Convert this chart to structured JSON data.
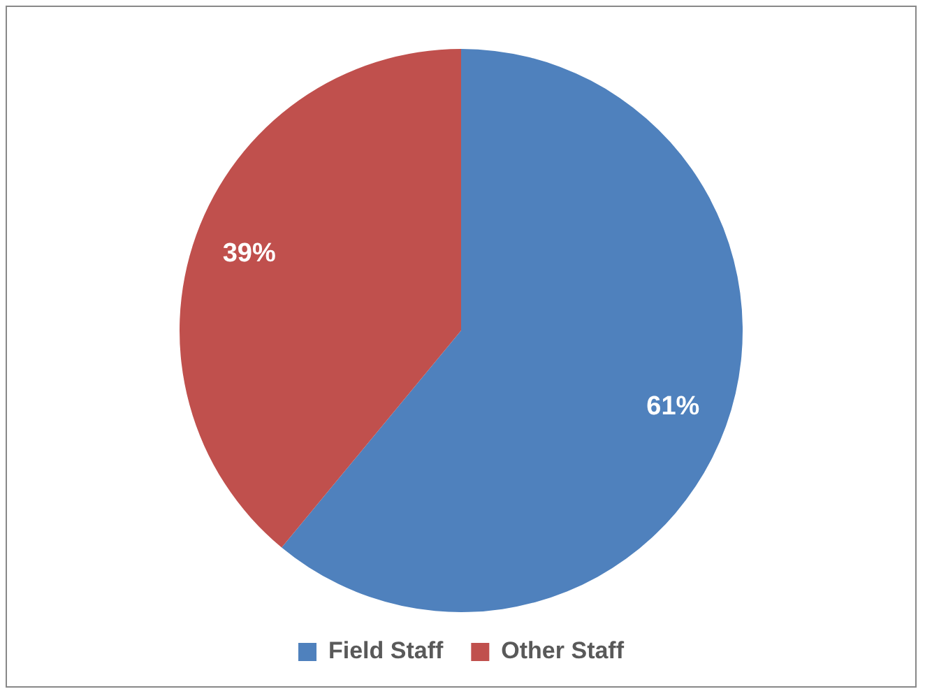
{
  "chart_data": {
    "type": "pie",
    "categories": [
      "Field Staff",
      "Other Staff"
    ],
    "values": [
      61,
      39
    ],
    "colors": [
      "#4f81bd",
      "#c0504d"
    ],
    "value_labels": [
      "61%",
      "39%"
    ],
    "legend": "bottom"
  }
}
